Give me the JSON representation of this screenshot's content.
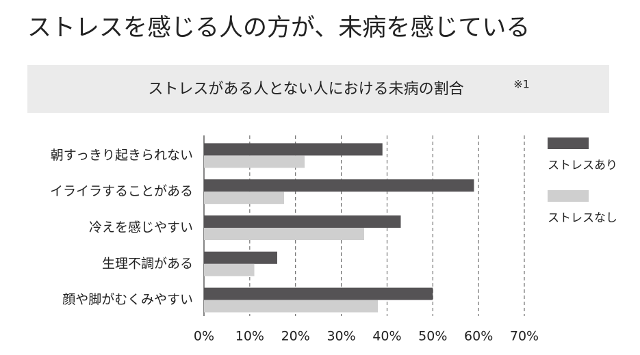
{
  "chart_data": {
    "type": "bar",
    "orientation": "horizontal",
    "title": "ストレスを感じる人の方が、未病を感じている",
    "subtitle": "ストレスがある人とない人における未病の割合",
    "subtitle_note": "※1",
    "categories": [
      "朝すっきり起きられない",
      "イライラすることがある",
      "冷えを感じやすい",
      "生理不調がある",
      "顔や脚がむくみやすい"
    ],
    "series": [
      {
        "name": "ストレスあり",
        "color": "#555355",
        "values": [
          39,
          59,
          43,
          16,
          50
        ]
      },
      {
        "name": "ストレスなし",
        "color": "#cfcfcf",
        "values": [
          22,
          17.5,
          35,
          11,
          38
        ]
      }
    ],
    "xlim": [
      0,
      70
    ],
    "xticks": [
      {
        "value": 0,
        "label": "0%"
      },
      {
        "value": 10,
        "label": "10%"
      },
      {
        "value": 20,
        "label": "20%"
      },
      {
        "value": 30,
        "label": "30%"
      },
      {
        "value": 40,
        "label": "40%"
      },
      {
        "value": 50,
        "label": "50%"
      },
      {
        "value": 60,
        "label": "60%"
      },
      {
        "value": 70,
        "label": "70%"
      }
    ],
    "grid": true,
    "legend": "right"
  }
}
